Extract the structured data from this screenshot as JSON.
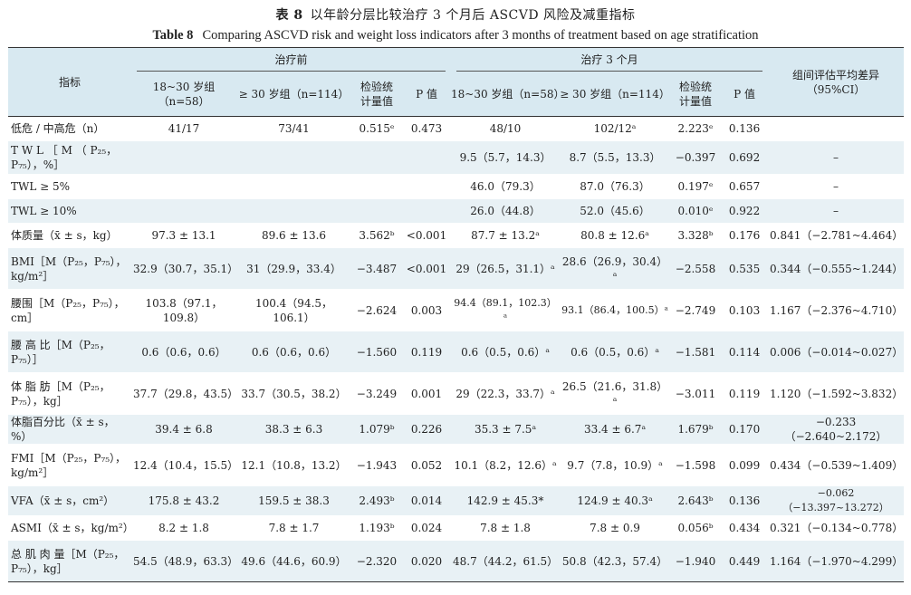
{
  "title": {
    "cn_label": "表 8",
    "cn_text": "以年龄分层比较治疗 3 个月后 ASCVD 风险及减重指标",
    "en_label": "Table 8",
    "en_text": "Comparing ASCVD risk and weight loss indicators after 3 months of treatment based on age stratification"
  },
  "header": {
    "indicator": "指标",
    "before": "治疗前",
    "after": "治疗 3 个月",
    "group_a": "18~30 岁组（n=58）",
    "group_b": "≥ 30 岁组（n=114）",
    "test_stat": "检验统计量值",
    "p_value": "P 值",
    "diff": "组间评估平均差异（95%CI）"
  },
  "rows": [
    {
      "label": "低危 / 中高危（n）",
      "b_a": "41/17",
      "b_b": "73/41",
      "b_t": "0.515ᵉ",
      "b_p": "0.473",
      "a_a": "48/10",
      "a_b": "102/12ᵃ",
      "a_t": "2.223ᵉ",
      "a_p": "0.136",
      "d": ""
    },
    {
      "label": "T W L ［ M （ P₂₅， P₇₅），%］",
      "b_a": "",
      "b_b": "",
      "b_t": "",
      "b_p": "",
      "a_a": "9.5（5.7，14.3）",
      "a_b": "8.7（5.5，13.3）",
      "a_t": "−0.397",
      "a_p": "0.692",
      "d": "–"
    },
    {
      "label": "TWL ≥ 5%",
      "b_a": "",
      "b_b": "",
      "b_t": "",
      "b_p": "",
      "a_a": "46.0（79.3）",
      "a_b": "87.0（76.3）",
      "a_t": "0.197ᵉ",
      "a_p": "0.657",
      "d": "–"
    },
    {
      "label": "TWL ≥ 10%",
      "b_a": "",
      "b_b": "",
      "b_t": "",
      "b_p": "",
      "a_a": "26.0（44.8）",
      "a_b": "52.0（45.6）",
      "a_t": "0.010ᵉ",
      "a_p": "0.922",
      "d": "–"
    },
    {
      "label": "体质量（x̄ ± s，kg）",
      "b_a": "97.3 ± 13.1",
      "b_b": "89.6 ± 13.6",
      "b_t": "3.562ᵇ",
      "b_p": "<0.001",
      "a_a": "87.7 ± 13.2ᵃ",
      "a_b": "80.8 ± 12.6ᵃ",
      "a_t": "3.328ᵇ",
      "a_p": "0.176",
      "d": "0.841（−2.781~4.464）"
    },
    {
      "label": "BMI［M（P₂₅，P₇₅），kg/m²］",
      "b_a": "32.9（30.7，35.1）",
      "b_b": "31（29.9，33.4）",
      "b_t": "−3.487",
      "b_p": "<0.001",
      "a_a": "29（26.5，31.1）ᵃ",
      "a_b": "28.6（26.9，30.4）ᵃ",
      "a_t": "−2.558",
      "a_p": "0.535",
      "d": "0.344（−0.555~1.244）"
    },
    {
      "label": "腰围［M（P₂₅，P₇₅），cm］",
      "b_a": "103.8（97.1，109.8）",
      "b_b": "100.4（94.5，106.1）",
      "b_t": "−2.624",
      "b_p": "0.003",
      "a_a": "94.4（89.1，102.3）ᵃ",
      "a_b": "93.1（86.4，100.5）ᵃ",
      "a_t": "−2.749",
      "a_p": "0.103",
      "d": "1.167（−2.376~4.710）"
    },
    {
      "label": "腰 高 比［M（P₂₅，P₇₅）］",
      "b_a": "0.6（0.6，0.6）",
      "b_b": "0.6（0.6，0.6）",
      "b_t": "−1.560",
      "b_p": "0.119",
      "a_a": "0.6（0.5，0.6）ᵃ",
      "a_b": "0.6（0.5，0.6）ᵃ",
      "a_t": "−1.581",
      "a_p": "0.114",
      "d": "0.006（−0.014~0.027）"
    },
    {
      "label": "体 脂 肪［M（P₂₅，P₇₅），kg］",
      "b_a": "37.7（29.8，43.5）",
      "b_b": "33.7（30.5，38.2）",
      "b_t": "−3.249",
      "b_p": "0.001",
      "a_a": "29（22.3，33.7）ᵃ",
      "a_b": "26.5（21.6，31.8）ᵃ",
      "a_t": "−3.011",
      "a_p": "0.119",
      "d": "1.120（−1.592~3.832）"
    },
    {
      "label": "体脂百分比（x̄ ± s，%）",
      "b_a": "39.4 ± 6.8",
      "b_b": "38.3 ± 6.3",
      "b_t": "1.079ᵇ",
      "b_p": "0.226",
      "a_a": "35.3 ± 7.5ᵃ",
      "a_b": "33.4 ± 6.7ᵃ",
      "a_t": "1.679ᵇ",
      "a_p": "0.170",
      "d": "−0.233（−2.640~2.172）"
    },
    {
      "label": "FMI［M（P₂₅，P₇₅），kg/m²］",
      "b_a": "12.4（10.4，15.5）",
      "b_b": "12.1（10.8，13.2）",
      "b_t": "−1.943",
      "b_p": "0.052",
      "a_a": "10.1（8.2，12.6）ᵃ",
      "a_b": "9.7（7.8，10.9）ᵃ",
      "a_t": "−1.598",
      "a_p": "0.099",
      "d": "0.434（−0.539~1.409）"
    },
    {
      "label": "VFA（x̄ ± s，cm²）",
      "b_a": "175.8 ± 43.2",
      "b_b": "159.5 ± 38.3",
      "b_t": "2.493ᵇ",
      "b_p": "0.014",
      "a_a": "142.9 ± 45.3*",
      "a_b": "124.9 ± 40.3ᵃ",
      "a_t": "2.643ᵇ",
      "a_p": "0.136",
      "d": "−0.062（−13.397~13.272）"
    },
    {
      "label": "ASMI（x̄ ± s，kg/m²）",
      "b_a": "8.2 ± 1.8",
      "b_b": "7.8 ± 1.7",
      "b_t": "1.193ᵇ",
      "b_p": "0.024",
      "a_a": "7.8 ± 1.8",
      "a_b": "7.8 ± 0.9",
      "a_t": "0.056ᵇ",
      "a_p": "0.434",
      "d": "0.321（−0.134~0.778）"
    },
    {
      "label": "总 肌 肉 量［M（P₂₅，P₇₅），kg］",
      "b_a": "54.5（48.9，63.3）",
      "b_b": "49.6（44.6，60.9）",
      "b_t": "−2.320",
      "b_p": "0.020",
      "a_a": "48.7（44.2，61.5）",
      "a_b": "50.8（42.3，57.4）",
      "a_t": "−1.940",
      "a_p": "0.449",
      "d": "1.164（−1.970~4.299）"
    }
  ]
}
